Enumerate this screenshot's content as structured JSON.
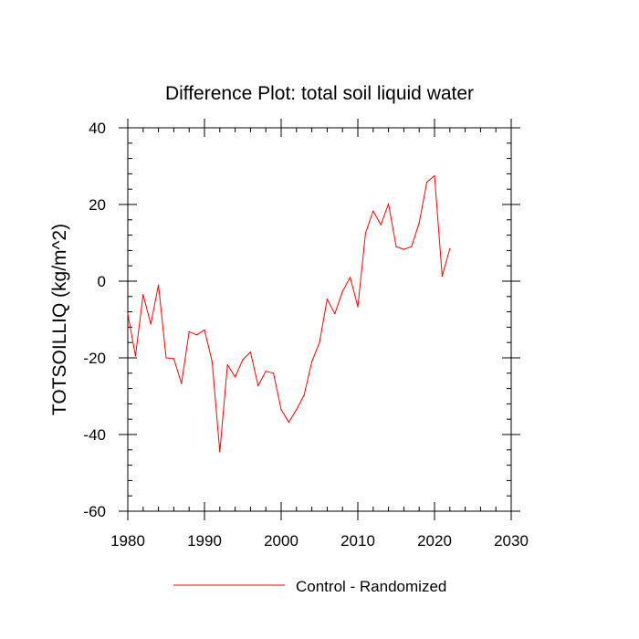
{
  "chart_data": {
    "type": "line",
    "title": "Difference Plot: total soil liquid water",
    "xlabel": "",
    "ylabel": "TOTSOILLIQ  (kg/m^2)",
    "xlim": [
      1980,
      2030
    ],
    "ylim": [
      -60,
      40
    ],
    "x_ticks": [
      1980,
      1990,
      2000,
      2010,
      2020,
      2030
    ],
    "x_tick_labels": [
      "1980",
      "1990",
      "2000",
      "2010",
      "2020",
      "2030"
    ],
    "y_ticks": [
      -60,
      -40,
      -20,
      0,
      20,
      40
    ],
    "y_tick_labels": [
      "-60",
      "-40",
      "-20",
      "0",
      "20",
      "40"
    ],
    "x_minor_step": 2,
    "y_minor_step": 4,
    "grid": false,
    "legend_position": "bottom-center",
    "series": [
      {
        "name": "Control - Randomized",
        "color": "#ff0000",
        "x": [
          1980,
          1981,
          1982,
          1983,
          1984,
          1985,
          1986,
          1987,
          1988,
          1989,
          1990,
          1991,
          1992,
          1993,
          1994,
          1995,
          1996,
          1997,
          1998,
          1999,
          2000,
          2001,
          2002,
          2003,
          2004,
          2005,
          2006,
          2007,
          2008,
          2009,
          2010,
          2011,
          2012,
          2013,
          2014,
          2015,
          2016,
          2017,
          2018,
          2019,
          2020,
          2021,
          2022
        ],
        "values": [
          -8.5,
          -19.5,
          -3.5,
          -11.2,
          -1.0,
          -20.0,
          -20.2,
          -26.7,
          -13.2,
          -14.0,
          -12.7,
          -21.0,
          -44.5,
          -21.8,
          -25.0,
          -20.5,
          -18.5,
          -27.3,
          -23.5,
          -24.0,
          -33.5,
          -36.8,
          -33.5,
          -29.7,
          -21.0,
          -16.0,
          -4.7,
          -8.5,
          -2.7,
          1.0,
          -6.7,
          12.5,
          18.3,
          14.7,
          20.2,
          9.0,
          8.3,
          9.0,
          15.2,
          25.8,
          27.5,
          1.3,
          8.5
        ]
      }
    ]
  }
}
